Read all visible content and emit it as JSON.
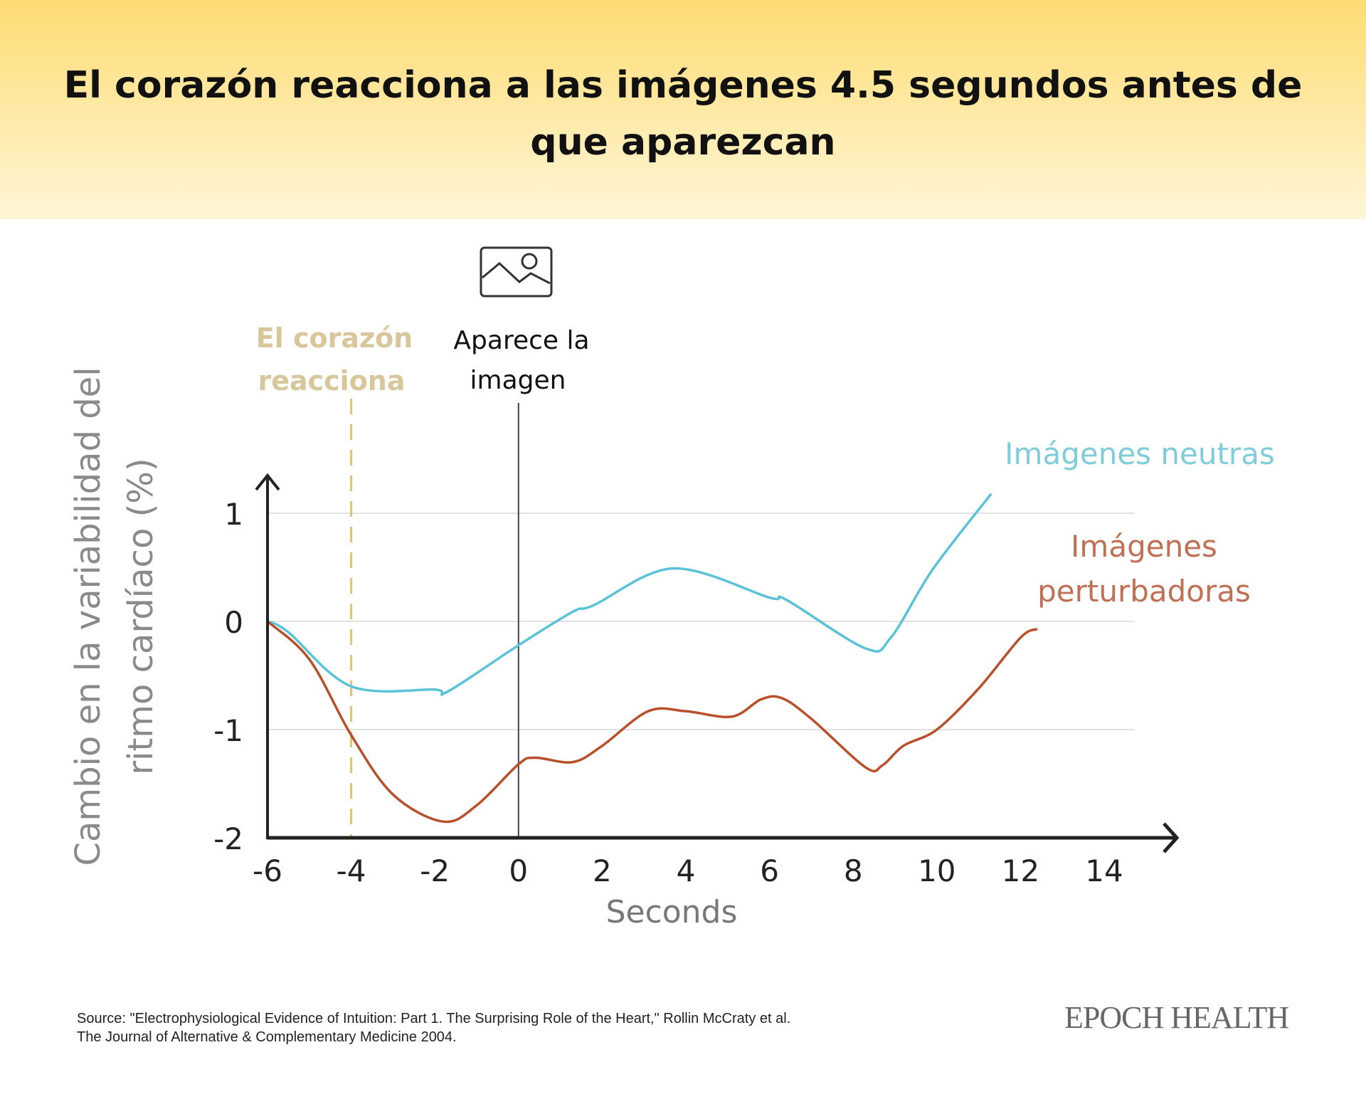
{
  "title": "El corazón reacciona a las imágenes 4.5 segundos antes de que aparezcan",
  "annotations": {
    "heart_reacts": [
      "El corazón",
      "reacciona"
    ],
    "image_appears": [
      "Aparece la",
      "imagen"
    ],
    "image_icon": "image-icon"
  },
  "chart_data": {
    "type": "line",
    "title": "El corazón reacciona a las imágenes 4.5 segundos antes de que aparezcan",
    "xlabel": "Seconds",
    "ylabel": "Cambio en la variabilidad del ritmo cardíaco (%)",
    "xlim": [
      -6,
      15.5
    ],
    "ylim": [
      -2,
      1.3
    ],
    "xticks": [
      -6,
      -4,
      -2,
      0,
      2,
      4,
      6,
      8,
      10,
      12,
      14
    ],
    "yticks": [
      1,
      0,
      -1,
      -2
    ],
    "grid": "horizontal",
    "reference_lines": [
      {
        "x": -4,
        "style": "dashed",
        "color": "#e8c06a"
      },
      {
        "x": 0,
        "style": "solid",
        "color": "#444444"
      }
    ],
    "series": [
      {
        "name": "Imágenes neutras",
        "color": "#5bc3d8",
        "x": [
          -6,
          -5.5,
          -4,
          -2,
          -1.7,
          0,
          1.3,
          1.8,
          3.7,
          6,
          6.4,
          8.3,
          8.9,
          9.9,
          11.3
        ],
        "y": [
          0,
          -0.1,
          -0.6,
          -0.63,
          -0.65,
          -0.22,
          0.09,
          0.15,
          0.49,
          0.22,
          0.2,
          -0.25,
          -0.15,
          0.48,
          1.18
        ]
      },
      {
        "name": "Imágenes perturbadoras",
        "color": "#b9502c",
        "x": [
          -6,
          -5,
          -4,
          -3,
          -1.8,
          -1,
          0,
          0.4,
          1.3,
          2,
          3.1,
          4,
          5.1,
          5.8,
          6.3,
          7,
          8.3,
          8.7,
          9.2,
          10,
          11,
          12,
          12.4
        ],
        "y": [
          0,
          -0.35,
          -1.05,
          -1.6,
          -1.85,
          -1.7,
          -1.32,
          -1.26,
          -1.3,
          -1.15,
          -0.83,
          -0.83,
          -0.88,
          -0.72,
          -0.71,
          -0.9,
          -1.35,
          -1.33,
          -1.15,
          -1.0,
          -0.62,
          -0.15,
          -0.07
        ]
      }
    ],
    "legend_labels": {
      "neutral": [
        "Imágenes neutras"
      ],
      "disturbing": [
        "Imágenes",
        "perturbadoras"
      ]
    }
  },
  "source": [
    "Source: \"Electrophysiological Evidence of Intuition: Part 1. The Surprising Role of the Heart,\" Rollin McCraty et al.",
    "The Journal of Alternative & Complementary Medicine 2004."
  ],
  "logo": "EPOCH HEALTH"
}
